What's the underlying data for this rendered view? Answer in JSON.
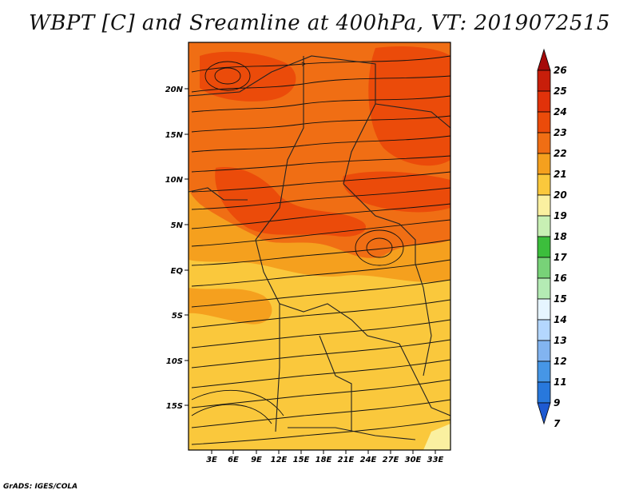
{
  "title": "WBPT [C] and Sreamline at 400hPa, VT: 2019072515",
  "credit": "GrADS: IGES/COLA",
  "map": {
    "lon_labels": [
      "3E",
      "6E",
      "9E",
      "12E",
      "15E",
      "18E",
      "21E",
      "24E",
      "27E",
      "30E",
      "33E"
    ],
    "lat_labels": [
      "20N",
      "15N",
      "10N",
      "5N",
      "EQ",
      "5S",
      "10S",
      "15S"
    ]
  },
  "colorbar": {
    "labels": [
      "26",
      "25",
      "24",
      "23",
      "22",
      "21",
      "20",
      "19",
      "18",
      "17",
      "16",
      "15",
      "14",
      "13",
      "12",
      "11",
      "9",
      "7"
    ],
    "colors": [
      "#a50a0a",
      "#c81e0a",
      "#e1320a",
      "#eb4b0a",
      "#f06e14",
      "#f5a01e",
      "#fac83c",
      "#faf0a0",
      "#c8f0b4",
      "#3cbe3c",
      "#78d278",
      "#b4ebb4",
      "#e6f5ff",
      "#b4d7ff",
      "#82b4f0",
      "#4696e6",
      "#2878dc",
      "#1e5ad2"
    ]
  }
}
